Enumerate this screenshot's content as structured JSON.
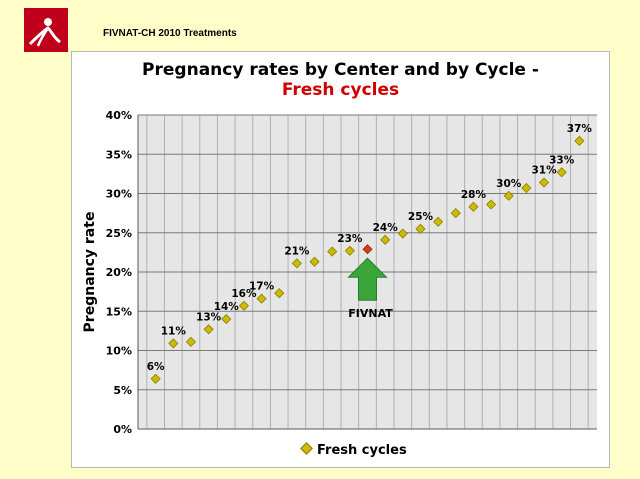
{
  "header": {
    "title": "FIVNAT-CH 2010 Treatments"
  },
  "chart_data": {
    "type": "scatter",
    "title": "Pregnancy rates by Center and by Cycle -",
    "subtitle": "Fresh cycles",
    "xlabel": "",
    "ylabel": "Pregnancy rate",
    "ylim": [
      0,
      40
    ],
    "yticks": [
      "0%",
      "5%",
      "10%",
      "15%",
      "20%",
      "25%",
      "30%",
      "35%",
      "40%"
    ],
    "grid": true,
    "legend_position": "bottom",
    "series": [
      {
        "name": "Fresh cycles",
        "color": "#ccbb00",
        "values": [
          6.4,
          10.9,
          11.1,
          12.7,
          14.0,
          15.7,
          16.6,
          17.3,
          21.1,
          21.3,
          22.6,
          22.7,
          22.9,
          24.1,
          24.9,
          25.5,
          26.4,
          27.5,
          28.3,
          28.6,
          29.7,
          30.7,
          31.4,
          32.7,
          36.7
        ],
        "labels": [
          "6%",
          "11%",
          "",
          "13%",
          "14%",
          "16%",
          "17%",
          "",
          "21%",
          "",
          "",
          "23%",
          "",
          "24%",
          "",
          "25%",
          "",
          "",
          "28%",
          "",
          "30%",
          "",
          "31%",
          "33%",
          "37%"
        ]
      }
    ],
    "highlight": {
      "index": 12,
      "color": "#d04020",
      "annotation": "FIVNAT",
      "arrow_color": "#3aa63a"
    }
  }
}
